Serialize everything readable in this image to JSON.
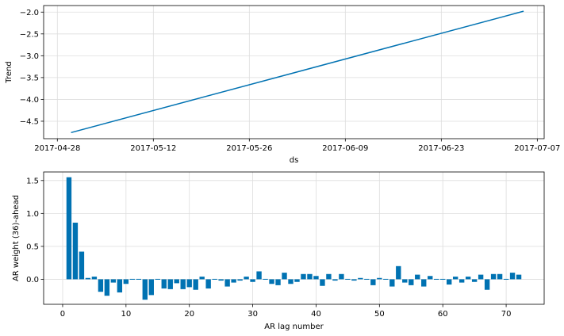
{
  "colors": {
    "series": "#0072B2",
    "grid": "#dddddd",
    "axis": "#000000"
  },
  "chart_data": [
    {
      "type": "line",
      "xlabel": "ds",
      "ylabel": "Trend",
      "xticks": [
        "2017-04-28",
        "2017-05-12",
        "2017-05-26",
        "2017-06-09",
        "2017-06-23",
        "2017-07-07"
      ],
      "yticks": [
        "−4.5",
        "−4.0",
        "−3.5",
        "−3.0",
        "−2.5",
        "−2.0"
      ],
      "ytick_values": [
        -4.5,
        -4.0,
        -3.5,
        -3.0,
        -2.5,
        -2.0
      ],
      "xlim": [
        "2017-04-26",
        "2017-07-08"
      ],
      "ylim": [
        -4.9,
        -1.85
      ],
      "grid": true,
      "x": [
        "2017-04-30",
        "2017-07-05"
      ],
      "y": [
        -4.76,
        -1.98
      ]
    },
    {
      "type": "bar",
      "xlabel": "AR lag number",
      "ylabel": "AR weight (36)-ahead",
      "xticks": [
        "0",
        "10",
        "20",
        "30",
        "40",
        "50",
        "60",
        "70"
      ],
      "xtick_values": [
        0,
        10,
        20,
        30,
        40,
        50,
        60,
        70
      ],
      "yticks": [
        "0.0",
        "0.5",
        "1.0",
        "1.5"
      ],
      "ytick_values": [
        0.0,
        0.5,
        1.0,
        1.5
      ],
      "xlim": [
        -3,
        76
      ],
      "ylim": [
        -0.38,
        1.63
      ],
      "grid": true,
      "x": [
        1,
        2,
        3,
        4,
        5,
        6,
        7,
        8,
        9,
        10,
        11,
        12,
        13,
        14,
        15,
        16,
        17,
        18,
        19,
        20,
        21,
        22,
        23,
        24,
        25,
        26,
        27,
        28,
        29,
        30,
        31,
        32,
        33,
        34,
        35,
        36,
        37,
        38,
        39,
        40,
        41,
        42,
        43,
        44,
        45,
        46,
        47,
        48,
        49,
        50,
        51,
        52,
        53,
        54,
        55,
        56,
        57,
        58,
        59,
        60,
        61,
        62,
        63,
        64,
        65,
        66,
        67,
        68,
        69,
        70,
        71,
        72
      ],
      "values": [
        1.55,
        0.86,
        0.42,
        0.02,
        0.04,
        -0.19,
        -0.25,
        -0.05,
        -0.2,
        -0.07,
        0.0,
        0.0,
        -0.31,
        -0.24,
        0.0,
        -0.14,
        -0.15,
        -0.06,
        -0.15,
        -0.12,
        -0.16,
        0.04,
        -0.14,
        0.0,
        -0.02,
        -0.11,
        -0.05,
        -0.02,
        0.04,
        -0.04,
        0.12,
        0.0,
        -0.07,
        -0.09,
        0.1,
        -0.07,
        -0.04,
        0.08,
        0.08,
        0.05,
        -0.1,
        0.08,
        -0.02,
        0.08,
        0.0,
        -0.02,
        0.02,
        0.0,
        -0.09,
        0.02,
        0.0,
        -0.11,
        0.2,
        -0.05,
        -0.09,
        0.07,
        -0.11,
        0.05,
        0.0,
        0.0,
        -0.08,
        0.04,
        -0.05,
        0.04,
        -0.04,
        0.07,
        -0.16,
        0.08,
        0.08,
        0.0,
        0.1,
        0.07
      ]
    }
  ]
}
